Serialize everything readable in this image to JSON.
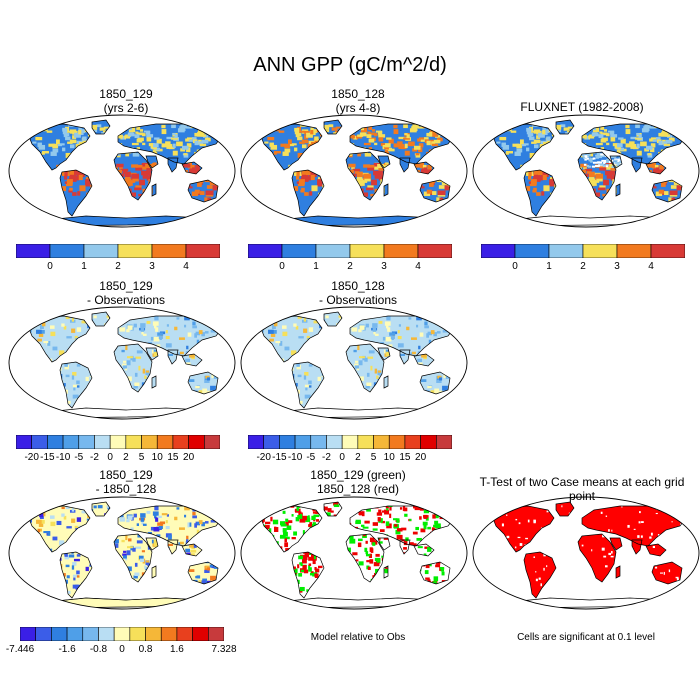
{
  "figure": {
    "title": "ANN GPP (gC/m^2/d)"
  },
  "panels": [
    {
      "id": "p1",
      "title_line1": "1850_129",
      "title_line2": "(yrs 2-6)"
    },
    {
      "id": "p2",
      "title_line1": "1850_128",
      "title_line2": "(yrs 4-8)"
    },
    {
      "id": "p3",
      "title_line1": "FLUXNET (1982-2008)",
      "title_line2": ""
    },
    {
      "id": "p4",
      "title_line1": "1850_129",
      "title_line2": "- Observations"
    },
    {
      "id": "p5",
      "title_line1": "1850_128",
      "title_line2": "- Observations"
    },
    {
      "id": "p7",
      "title_line1": "1850_129",
      "title_line2": "- 1850_128"
    },
    {
      "id": "p8",
      "title_line1": "1850_129 (green)",
      "title_line2": "1850_128 (red)"
    },
    {
      "id": "p9",
      "title_line1": "T-Test of two Case means at each grid point",
      "title_line2": ""
    }
  ],
  "colorbars": {
    "abs": {
      "labels": [
        "0",
        "1",
        "2",
        "3",
        "4"
      ],
      "colors": [
        "#3a1fe6",
        "#2f7fe0",
        "#93c9ec",
        "#f6e05a",
        "#f27a1f",
        "#d83a36"
      ]
    },
    "diff_obs": {
      "labels": [
        "-20",
        "-15",
        "-10",
        "-5",
        "-2",
        "0",
        "2",
        "5",
        "10",
        "15",
        "20"
      ],
      "colors": [
        "#3a1fe6",
        "#3b5de8",
        "#2f7fe0",
        "#4f9fe8",
        "#77b8ee",
        "#b9def3",
        "#fffcb8",
        "#f6e05a",
        "#f5b738",
        "#f27a1f",
        "#e8401e",
        "#e00000",
        "#c73a3c"
      ]
    },
    "diff_case": {
      "labels": [
        "-7.446",
        "-1.6",
        "-0.8",
        "0",
        "0.8",
        "1.6",
        "7.328"
      ],
      "colors": [
        "#3a1fe6",
        "#3b5de8",
        "#2f7fe0",
        "#4f9fe8",
        "#77b8ee",
        "#b9def3",
        "#fffcb8",
        "#f6e05a",
        "#f5b738",
        "#f27a1f",
        "#e8401e",
        "#e00000",
        "#c73a3c"
      ]
    }
  },
  "notes": {
    "model_relative": "Model relative to Obs",
    "significance": "Cells are significant at 0.1 level"
  },
  "colors": {
    "land_abs_base": "#2f7fe0",
    "tropics_hot": "#d83a36",
    "diff_base": "#b9def3",
    "case_green": "#00ee00",
    "case_red": "#ee0000",
    "ttest_red": "#ff0000"
  }
}
